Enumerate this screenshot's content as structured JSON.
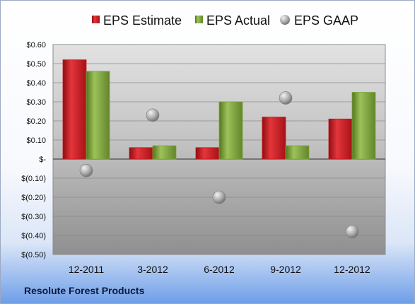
{
  "company": "Resolute Forest Products",
  "colors": {
    "estimate": "#c8171e",
    "actual": "#7fa63b",
    "gaap": "#a6a6a6"
  },
  "chart_data": {
    "type": "bar",
    "categories": [
      "12-2011",
      "3-2012",
      "6-2012",
      "9-2012",
      "12-2012"
    ],
    "series": [
      {
        "name": "EPS Estimate",
        "kind": "bar",
        "values": [
          0.52,
          0.06,
          0.06,
          0.22,
          0.21
        ]
      },
      {
        "name": "EPS Actual",
        "kind": "bar",
        "values": [
          0.46,
          0.07,
          0.3,
          0.07,
          0.35
        ]
      },
      {
        "name": "EPS GAAP",
        "kind": "marker",
        "values": [
          -0.06,
          0.23,
          -0.2,
          0.32,
          -0.38
        ]
      }
    ],
    "ylim": [
      -0.5,
      0.6
    ],
    "yticks": [
      0.6,
      0.5,
      0.4,
      0.3,
      0.2,
      0.1,
      0,
      -0.1,
      -0.2,
      -0.3,
      -0.4,
      -0.5
    ],
    "ytick_labels": [
      "$0.60",
      "$0.50",
      "$0.40",
      "$0.30",
      "$0.20",
      "$0.10",
      "$-",
      "$(0.10)",
      "$(0.20)",
      "$(0.30)",
      "$(0.40)",
      "$(0.50)"
    ],
    "grid": true,
    "legend": "top"
  }
}
